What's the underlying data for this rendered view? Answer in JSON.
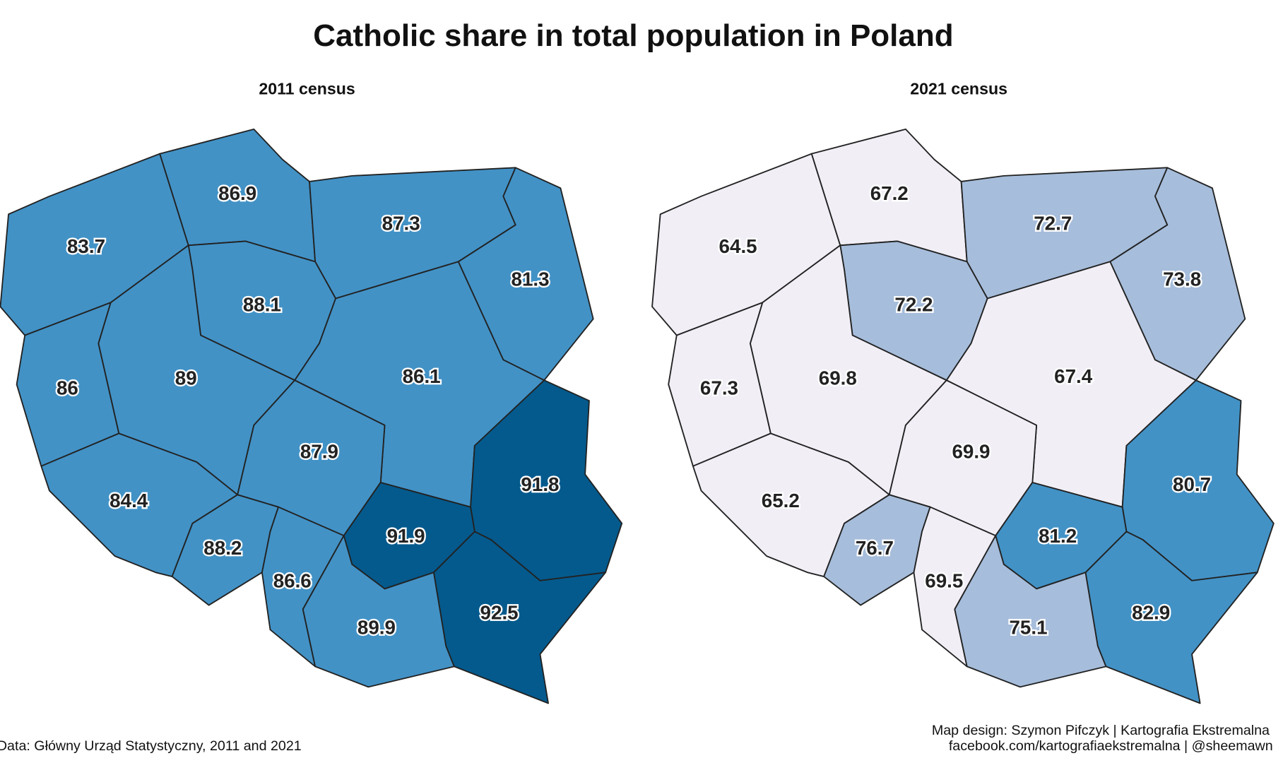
{
  "title": "Catholic share in total population in Poland",
  "panels": [
    {
      "subtitle": "2011 census",
      "regions": [
        {
          "value": 83.7,
          "color": "#4292c6"
        },
        {
          "value": 86.9,
          "color": "#4292c6"
        },
        {
          "value": 87.3,
          "color": "#4292c6"
        },
        {
          "value": 81.3,
          "color": "#4292c6"
        },
        {
          "value": 88.1,
          "color": "#4292c6"
        },
        {
          "value": 86,
          "color": "#4292c6"
        },
        {
          "value": 89,
          "color": "#4292c6"
        },
        {
          "value": 86.1,
          "color": "#4292c6"
        },
        {
          "value": 87.9,
          "color": "#4292c6"
        },
        {
          "value": 91.8,
          "color": "#045a8d"
        },
        {
          "value": 84.4,
          "color": "#4292c6"
        },
        {
          "value": 88.2,
          "color": "#4292c6"
        },
        {
          "value": 86.6,
          "color": "#4292c6"
        },
        {
          "value": 91.9,
          "color": "#045a8d"
        },
        {
          "value": 89.9,
          "color": "#4292c6"
        },
        {
          "value": 92.5,
          "color": "#045a8d"
        }
      ]
    },
    {
      "subtitle": "2021 census",
      "regions": [
        {
          "value": 64.5,
          "color": "#f1eef6"
        },
        {
          "value": 67.2,
          "color": "#f1eef6"
        },
        {
          "value": 72.7,
          "color": "#a6bddb"
        },
        {
          "value": 73.8,
          "color": "#a6bddb"
        },
        {
          "value": 72.2,
          "color": "#a6bddb"
        },
        {
          "value": 67.3,
          "color": "#f1eef6"
        },
        {
          "value": 69.8,
          "color": "#f1eef6"
        },
        {
          "value": 67.4,
          "color": "#f1eef6"
        },
        {
          "value": 69.9,
          "color": "#f1eef6"
        },
        {
          "value": 80.7,
          "color": "#4292c6"
        },
        {
          "value": 65.2,
          "color": "#f1eef6"
        },
        {
          "value": 76.7,
          "color": "#a6bddb"
        },
        {
          "value": 69.5,
          "color": "#f1eef6"
        },
        {
          "value": 81.2,
          "color": "#4292c6"
        },
        {
          "value": 75.1,
          "color": "#a6bddb"
        },
        {
          "value": 82.9,
          "color": "#4292c6"
        }
      ]
    }
  ],
  "source": "Data: Główny Urząd Statystyczny, 2011 and 2021",
  "credits": [
    "Map design: Szymon Pifczyk | Kartografia Ekstremalna",
    "facebook.com/kartografiaekstremalna | @sheemawn"
  ]
}
